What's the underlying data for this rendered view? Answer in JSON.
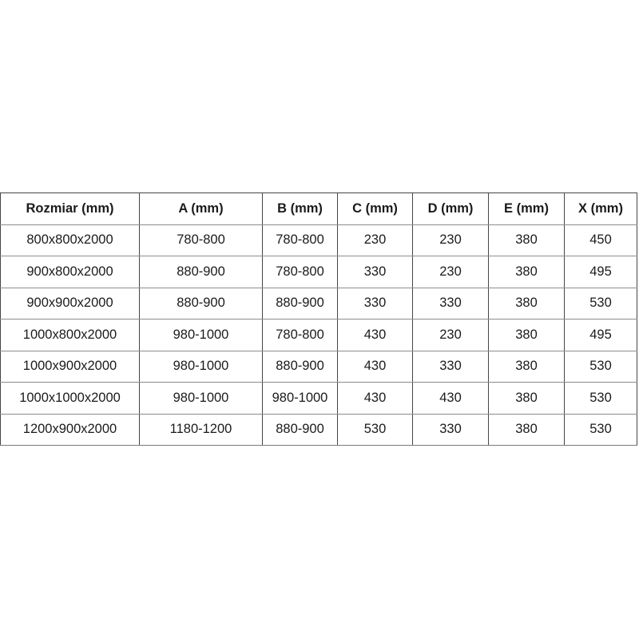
{
  "page": {
    "background_color": "#ffffff",
    "text_color": "#1b1b1b",
    "border_color_vertical": "#454545",
    "border_color_horizontal": "#8c8c8c"
  },
  "table": {
    "headers": [
      "Rozmiar (mm)",
      "A (mm)",
      "B (mm)",
      "C (mm)",
      "D (mm)",
      "E (mm)",
      "X (mm)"
    ],
    "rows": [
      [
        "800x800x2000",
        "780-800",
        "780-800",
        "230",
        "230",
        "380",
        "450"
      ],
      [
        "900x800x2000",
        "880-900",
        "780-800",
        "330",
        "230",
        "380",
        "495"
      ],
      [
        "900x900x2000",
        "880-900",
        "880-900",
        "330",
        "330",
        "380",
        "530"
      ],
      [
        "1000x800x2000",
        "980-1000",
        "780-800",
        "430",
        "230",
        "380",
        "495"
      ],
      [
        "1000x900x2000",
        "980-1000",
        "880-900",
        "430",
        "330",
        "380",
        "530"
      ],
      [
        "1000x1000x2000",
        "980-1000",
        "980-1000",
        "430",
        "430",
        "380",
        "530"
      ],
      [
        "1200x900x2000",
        "1180-1200",
        "880-900",
        "530",
        "330",
        "380",
        "530"
      ]
    ]
  }
}
